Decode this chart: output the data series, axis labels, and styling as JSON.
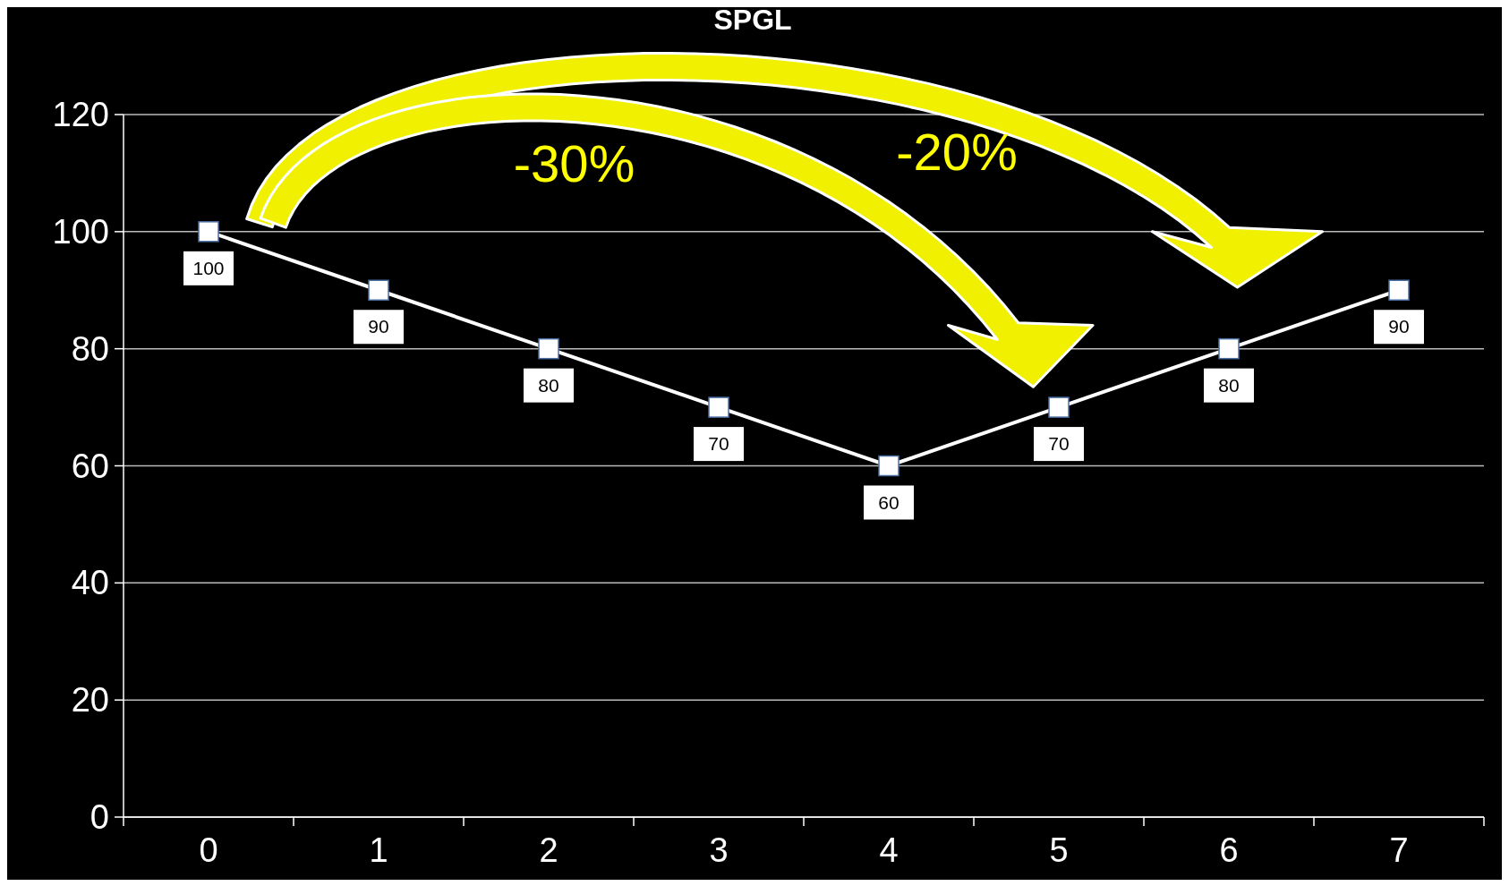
{
  "chart_data": {
    "type": "line",
    "categories": [
      "0",
      "1",
      "2",
      "3",
      "4",
      "5",
      "6",
      "7"
    ],
    "values": [
      100,
      90,
      80,
      70,
      60,
      70,
      80,
      90
    ],
    "color": "#ffffff",
    "marker": "square",
    "data_labels": true,
    "grid": "y",
    "ylim": [
      0,
      120
    ],
    "yticks": [
      0,
      20,
      40,
      60,
      80,
      100,
      120
    ],
    "annotations": [
      "SPGL",
      "-30%",
      "-20%"
    ]
  }
}
